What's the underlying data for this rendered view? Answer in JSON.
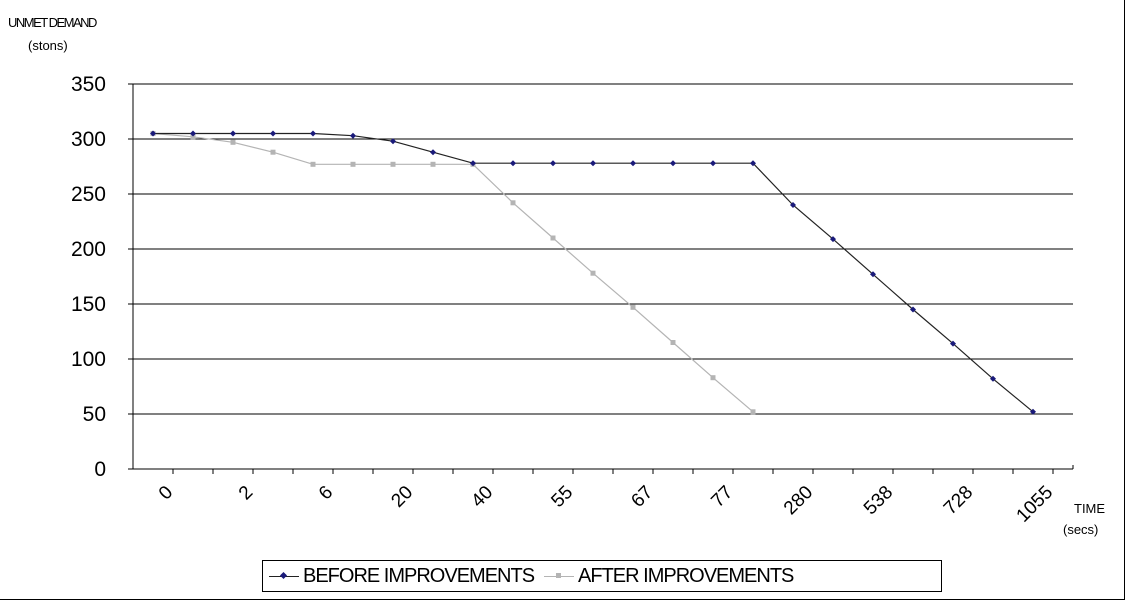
{
  "chart_data": {
    "type": "line",
    "ylabel": "UNMET DEMAND",
    "ylabel_unit": "(stons)",
    "xlabel": "TIME",
    "xlabel_unit": "(secs)",
    "ylim": [
      0,
      350
    ],
    "yticks": [
      0,
      50,
      100,
      150,
      200,
      250,
      300,
      350
    ],
    "x_tick_labels": [
      "0",
      "2",
      "6",
      "20",
      "40",
      "55",
      "67",
      "77",
      "280",
      "538",
      "728",
      "1055"
    ],
    "grid": "horizontal",
    "legend_position": "bottom",
    "series": [
      {
        "name": "BEFORE IMPROVEMENTS",
        "color": "#1a1a7a",
        "marker": "diamond",
        "values": [
          305,
          305,
          305,
          305,
          305,
          303,
          298,
          288,
          278,
          278,
          278,
          278,
          278,
          278,
          278,
          278,
          240,
          209,
          177,
          145,
          114,
          82,
          52
        ]
      },
      {
        "name": "AFTER IMPROVEMENTS",
        "color": "#b4b4b4",
        "marker": "square",
        "values": [
          305,
          302,
          297,
          288,
          277,
          277,
          277,
          277,
          277,
          242,
          210,
          178,
          147,
          115,
          83,
          52
        ]
      }
    ]
  }
}
